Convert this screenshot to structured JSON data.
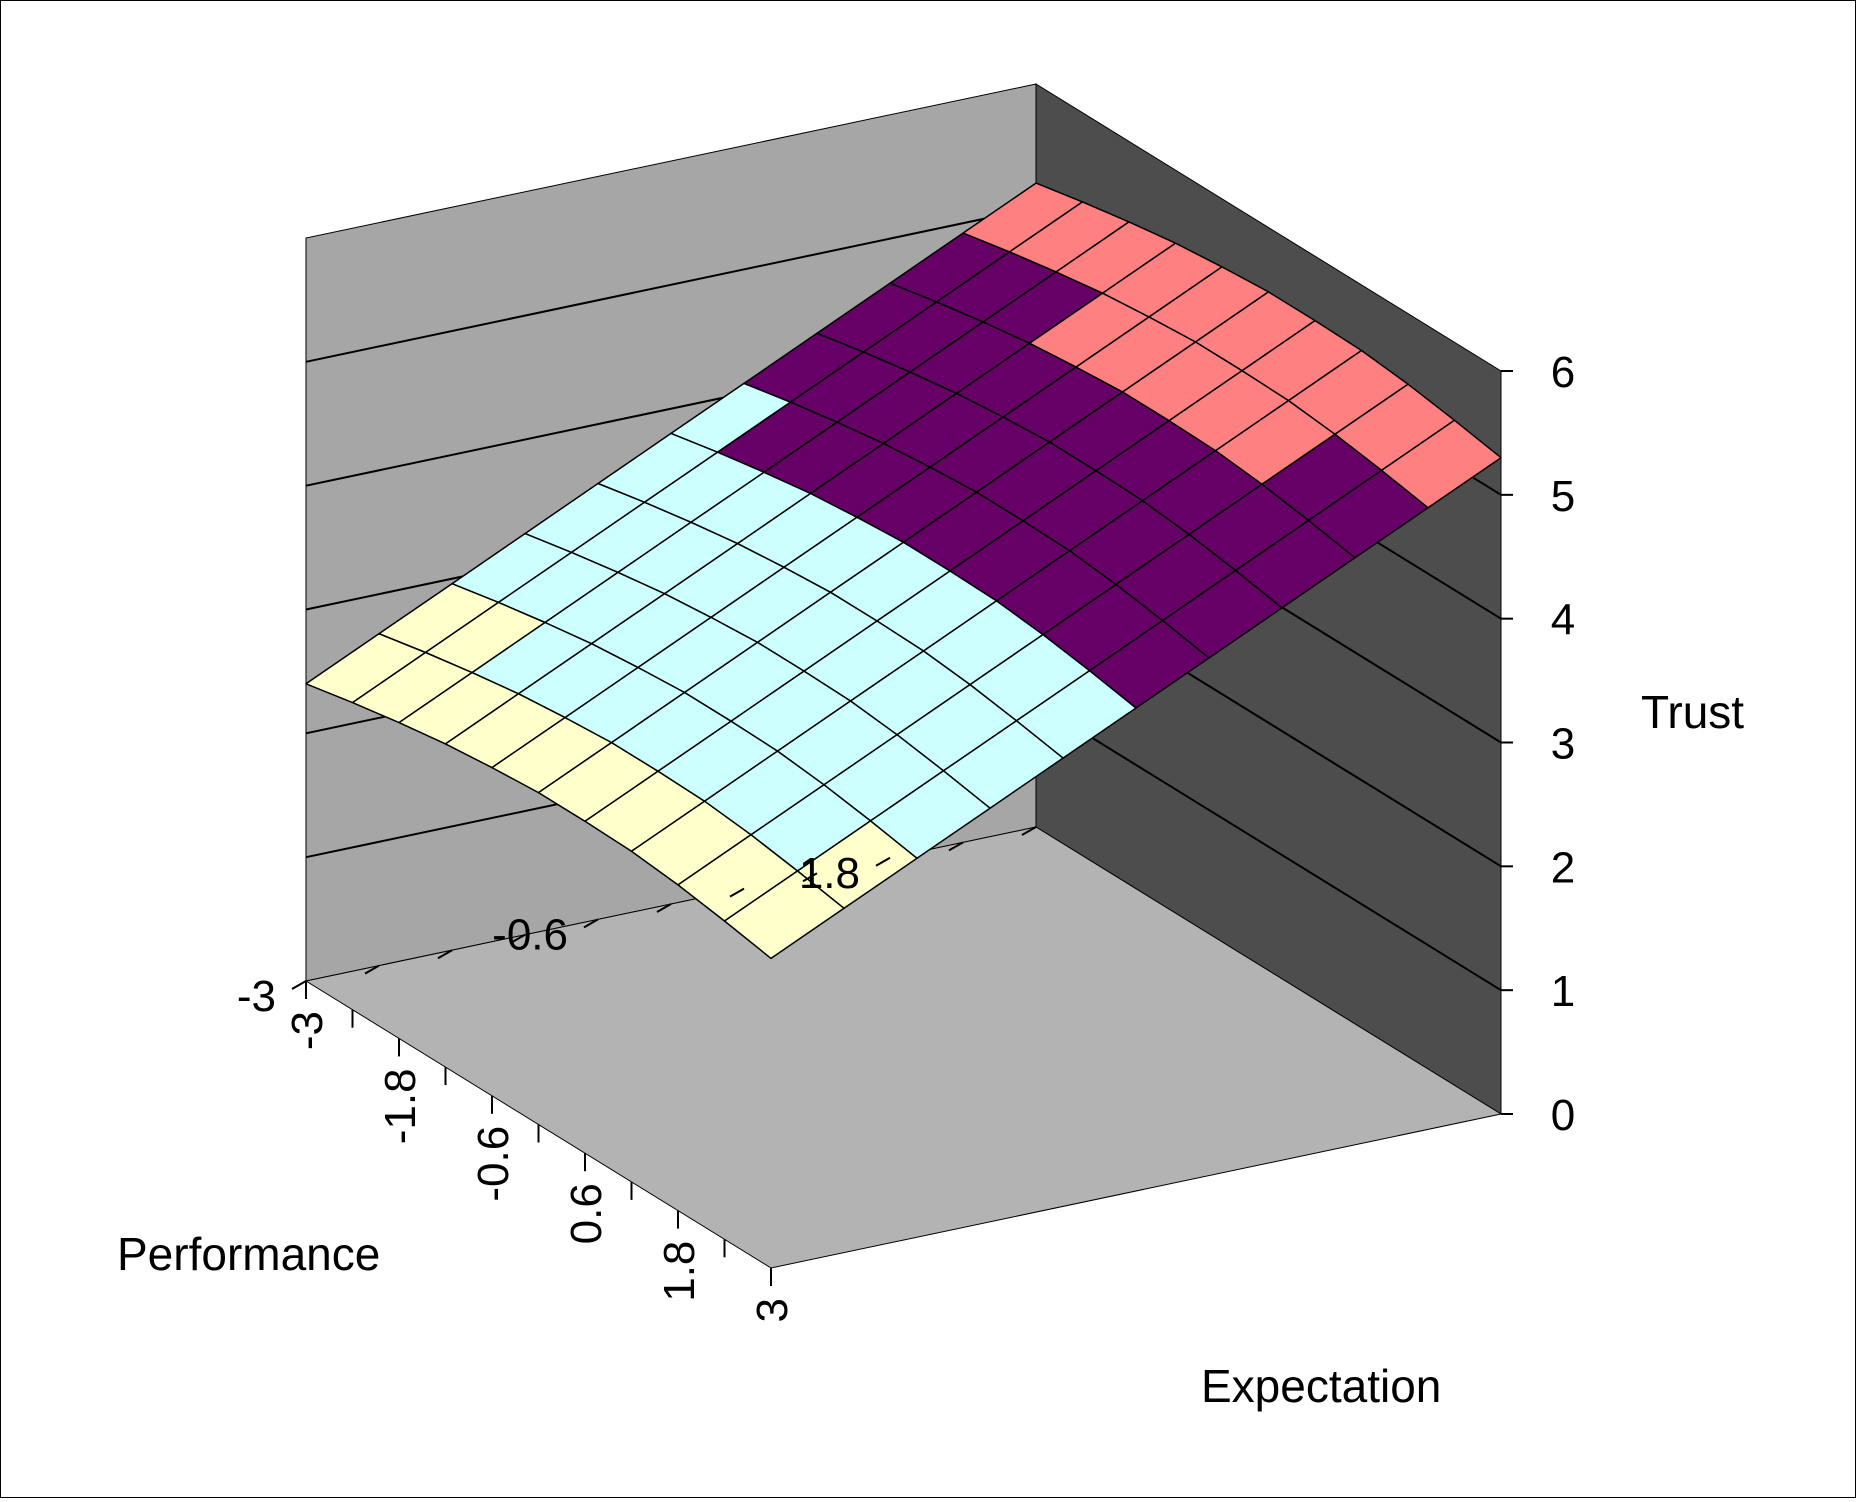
{
  "chart_data": {
    "type": "surface-3d",
    "title": "",
    "x_axis": {
      "label": "Expectation",
      "range": [
        -3,
        3
      ],
      "ticks": [
        "-3",
        "-1.8",
        "-0.6",
        "0.6",
        "1.8",
        "3"
      ]
    },
    "y_axis": {
      "label": "Performance",
      "range": [
        -3,
        3
      ],
      "ticks": [
        "-3",
        "-0.6",
        "1.8"
      ]
    },
    "z_axis": {
      "label": "Trust",
      "range": [
        0,
        6
      ],
      "ticks": [
        "0",
        "1",
        "2",
        "3",
        "4",
        "5",
        "6"
      ]
    },
    "grid_lines": true,
    "legend": "none",
    "color_bands": [
      {
        "range": [
          0,
          3
        ],
        "color": "#ffffcc"
      },
      {
        "range": [
          3,
          4
        ],
        "color": "#ccffff"
      },
      {
        "range": [
          4,
          5
        ],
        "color": "#660066"
      },
      {
        "range": [
          5,
          6
        ],
        "color": "#ff8080"
      }
    ],
    "surface": {
      "x": [
        -3,
        -2.4,
        -1.8,
        -1.2,
        -0.6,
        0,
        0.6,
        1.2,
        1.8,
        2.4,
        3
      ],
      "y": [
        -3,
        -2.4,
        -1.8,
        -1.2,
        -0.6,
        0,
        0.6,
        1.2,
        1.8,
        2.4,
        3
      ],
      "z": [
        [
          2.4,
          2.48,
          2.55,
          2.61,
          2.65,
          2.68,
          2.68,
          2.67,
          2.63,
          2.57,
          2.5
        ],
        [
          2.68,
          2.76,
          2.83,
          2.89,
          2.93,
          2.96,
          2.96,
          2.95,
          2.91,
          2.85,
          2.78
        ],
        [
          2.96,
          3.04,
          3.11,
          3.17,
          3.21,
          3.24,
          3.24,
          3.23,
          3.19,
          3.13,
          3.06
        ],
        [
          3.24,
          3.32,
          3.39,
          3.45,
          3.49,
          3.52,
          3.52,
          3.51,
          3.47,
          3.41,
          3.34
        ],
        [
          3.52,
          3.6,
          3.67,
          3.73,
          3.77,
          3.8,
          3.8,
          3.79,
          3.75,
          3.69,
          3.62
        ],
        [
          3.8,
          3.88,
          3.95,
          4.01,
          4.05,
          4.08,
          4.08,
          4.07,
          4.03,
          3.97,
          3.9
        ],
        [
          4.08,
          4.16,
          4.23,
          4.29,
          4.33,
          4.36,
          4.36,
          4.35,
          4.31,
          4.25,
          4.18
        ],
        [
          4.36,
          4.44,
          4.51,
          4.57,
          4.61,
          4.64,
          4.64,
          4.63,
          4.59,
          4.53,
          4.46
        ],
        [
          4.64,
          4.72,
          4.79,
          4.85,
          4.89,
          4.92,
          4.92,
          4.91,
          4.87,
          4.81,
          4.74
        ],
        [
          4.92,
          5.0,
          5.07,
          5.13,
          5.17,
          5.2,
          5.2,
          5.19,
          5.15,
          5.09,
          5.02
        ],
        [
          5.2,
          5.28,
          5.35,
          5.41,
          5.45,
          5.48,
          5.48,
          5.47,
          5.43,
          5.37,
          5.3
        ]
      ]
    }
  }
}
